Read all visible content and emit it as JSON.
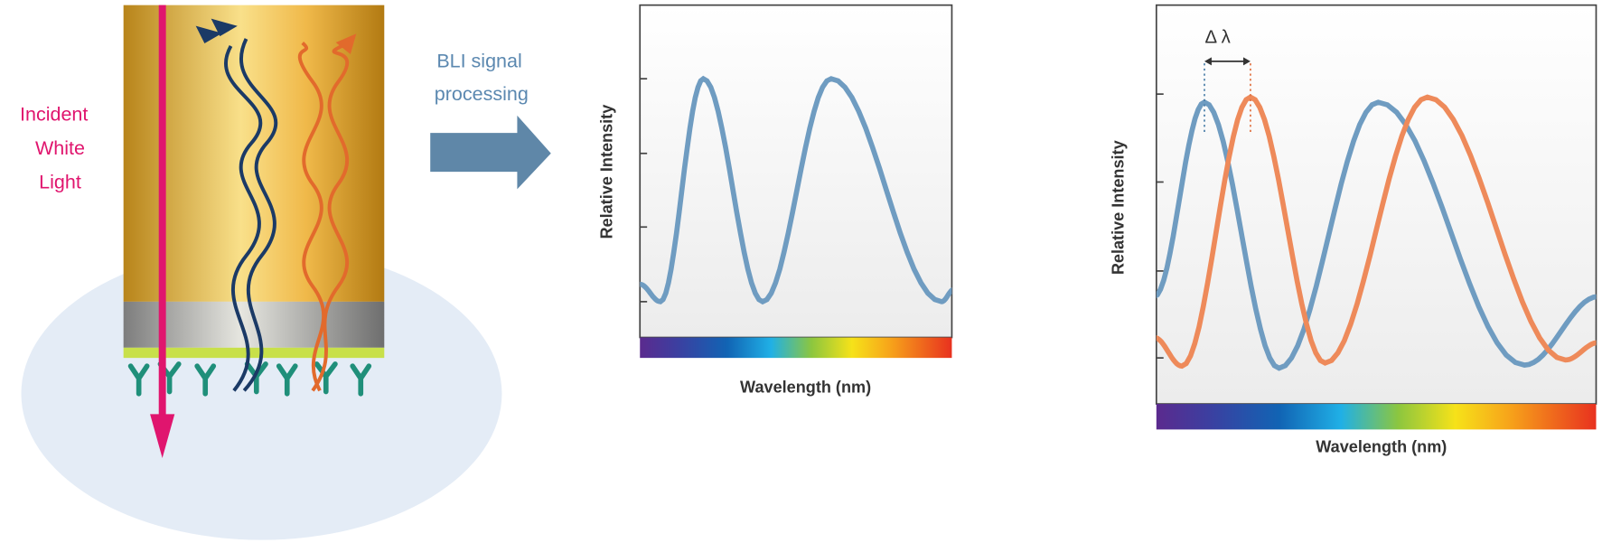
{
  "left": {
    "label": [
      "Incident",
      "White",
      "Light"
    ]
  },
  "arrow": {
    "label": [
      "BLI signal",
      "processing"
    ]
  },
  "charts": [
    {
      "y_label": "Relative Intensity",
      "x_label": "Wavelength (nm)"
    },
    {
      "delta_label": "Δ λ",
      "y_label": "Relative Intensity",
      "x_label": "Wavelength (nm)"
    }
  ]
}
